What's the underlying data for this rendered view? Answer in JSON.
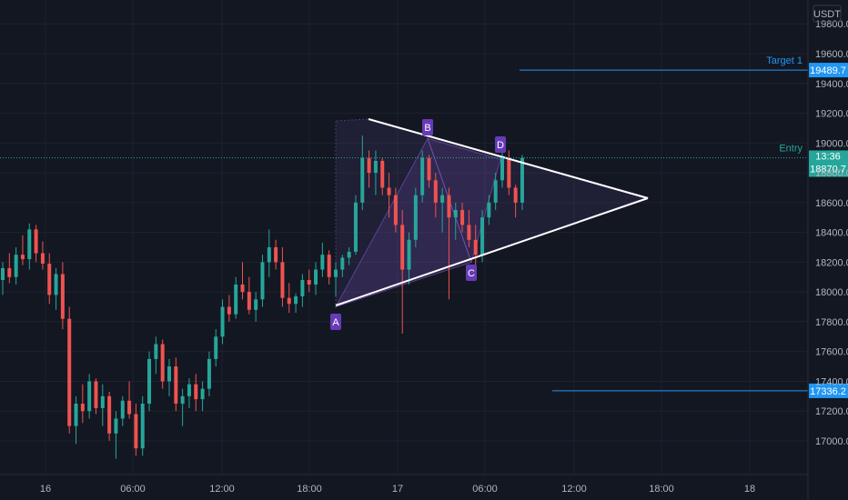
{
  "colors": {
    "background": "#131722",
    "grid": "#1e222d",
    "up": "#26a69a",
    "down": "#ef5350",
    "axis_text": "#b2b5be",
    "level_line": "#2196f3",
    "current_price": "#26a69a",
    "pattern_fill": "#7e57c2",
    "pattern_point": "#673ab7",
    "triangle_line": "#ffffff"
  },
  "chart_data": {
    "type": "candlestick",
    "currency": "USDT",
    "y_ticks": [
      "19800.0",
      "19600.0",
      "19400.0",
      "19200.0",
      "19000.0",
      "18800.0",
      "18600.0",
      "18400.0",
      "18200.0",
      "18000.0",
      "17800.0",
      "17600.0",
      "17400.0",
      "17200.0",
      "17000.0"
    ],
    "x_ticks": [
      "16",
      "06:00",
      "12:00",
      "18:00",
      "17",
      "06:00",
      "12:00",
      "18:00",
      "18"
    ],
    "ylim": [
      16850,
      19920
    ],
    "candles": [
      [
        18080,
        18200,
        17980,
        18160
      ],
      [
        18160,
        18260,
        18060,
        18100
      ],
      [
        18100,
        18300,
        18050,
        18250
      ],
      [
        18250,
        18380,
        18180,
        18220
      ],
      [
        18220,
        18460,
        18150,
        18420
      ],
      [
        18420,
        18450,
        18200,
        18260
      ],
      [
        18260,
        18340,
        18150,
        18190
      ],
      [
        18190,
        18260,
        17920,
        17980
      ],
      [
        17980,
        18160,
        17880,
        18120
      ],
      [
        18120,
        18200,
        17750,
        17820
      ],
      [
        17820,
        17900,
        17050,
        17100
      ],
      [
        17100,
        17300,
        16980,
        17250
      ],
      [
        17250,
        17380,
        17120,
        17200
      ],
      [
        17200,
        17450,
        17150,
        17400
      ],
      [
        17400,
        17420,
        17180,
        17220
      ],
      [
        17220,
        17380,
        17100,
        17300
      ],
      [
        17300,
        17330,
        17000,
        17050
      ],
      [
        17050,
        17200,
        16880,
        17150
      ],
      [
        17150,
        17300,
        17100,
        17270
      ],
      [
        17270,
        17400,
        17150,
        17180
      ],
      [
        17180,
        17250,
        16900,
        16950
      ],
      [
        16950,
        17300,
        16900,
        17250
      ],
      [
        17250,
        17600,
        17200,
        17550
      ],
      [
        17550,
        17700,
        17450,
        17650
      ],
      [
        17650,
        17680,
        17350,
        17400
      ],
      [
        17400,
        17550,
        17300,
        17500
      ],
      [
        17500,
        17560,
        17200,
        17250
      ],
      [
        17250,
        17350,
        17100,
        17300
      ],
      [
        17300,
        17420,
        17220,
        17380
      ],
      [
        17380,
        17450,
        17200,
        17280
      ],
      [
        17280,
        17400,
        17200,
        17350
      ],
      [
        17350,
        17600,
        17300,
        17550
      ],
      [
        17550,
        17750,
        17500,
        17700
      ],
      [
        17700,
        17950,
        17650,
        17900
      ],
      [
        17900,
        17980,
        17800,
        17850
      ],
      [
        17850,
        18100,
        17820,
        18050
      ],
      [
        18050,
        18200,
        17950,
        18000
      ],
      [
        18000,
        18100,
        17850,
        17880
      ],
      [
        17880,
        18000,
        17800,
        17950
      ],
      [
        17950,
        18250,
        17900,
        18200
      ],
      [
        18200,
        18420,
        18100,
        18300
      ],
      [
        18300,
        18350,
        18150,
        18200
      ],
      [
        18200,
        18300,
        17900,
        17960
      ],
      [
        17960,
        18060,
        17860,
        17920
      ],
      [
        17920,
        17990,
        17860,
        17970
      ],
      [
        17970,
        18120,
        17900,
        18080
      ],
      [
        18080,
        18150,
        18000,
        18050
      ],
      [
        18050,
        18200,
        17980,
        18150
      ],
      [
        18150,
        18330,
        18100,
        18250
      ],
      [
        18250,
        18280,
        18050,
        18100
      ],
      [
        18100,
        18200,
        17970,
        18150
      ],
      [
        18150,
        18250,
        18100,
        18230
      ],
      [
        18230,
        18300,
        18180,
        18270
      ],
      [
        18270,
        18650,
        18250,
        18600
      ],
      [
        18600,
        19050,
        18550,
        18900
      ],
      [
        18900,
        18950,
        18700,
        18800
      ],
      [
        18800,
        18950,
        18650,
        18880
      ],
      [
        18880,
        18900,
        18650,
        18700
      ],
      [
        18700,
        18800,
        18500,
        18650
      ],
      [
        18650,
        18700,
        18400,
        18450
      ],
      [
        18450,
        18550,
        17720,
        18150
      ],
      [
        18150,
        18400,
        18050,
        18350
      ],
      [
        18350,
        18700,
        18300,
        18650
      ],
      [
        18650,
        18950,
        18600,
        18900
      ],
      [
        18900,
        18920,
        18700,
        18750
      ],
      [
        18750,
        18800,
        18500,
        18600
      ],
      [
        18600,
        18700,
        18400,
        18650
      ],
      [
        18650,
        18700,
        17950,
        18500
      ],
      [
        18500,
        18600,
        18350,
        18550
      ],
      [
        18550,
        18600,
        18400,
        18450
      ],
      [
        18450,
        18550,
        18300,
        18350
      ],
      [
        18350,
        18450,
        18180,
        18250
      ],
      [
        18250,
        18550,
        18200,
        18500
      ],
      [
        18500,
        18650,
        18450,
        18600
      ],
      [
        18600,
        18800,
        18550,
        18750
      ],
      [
        18750,
        18980,
        18700,
        18900
      ],
      [
        18900,
        18950,
        18650,
        18700
      ],
      [
        18700,
        18720,
        18500,
        18600
      ],
      [
        18600,
        18920,
        18550,
        18900
      ]
    ],
    "levels": [
      {
        "price": "19489.7",
        "label": "Target 1"
      },
      {
        "price": "18900.1",
        "label": "Entry"
      },
      {
        "price": "17336.2",
        "label": ""
      }
    ],
    "current_price": "18870.7",
    "countdown": "13:36",
    "pattern_points": [
      "A",
      "B",
      "C",
      "D"
    ]
  }
}
